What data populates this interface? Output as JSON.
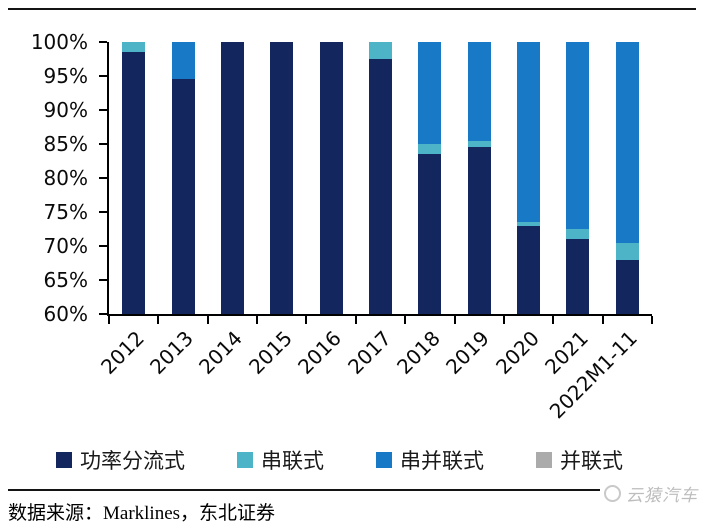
{
  "page": {
    "source_text": "数据来源：Marklines，东北证券",
    "watermark": "云猿汽车"
  },
  "chart_data": {
    "type": "bar",
    "stacked": true,
    "stack_mode": "percent",
    "title": "",
    "xlabel": "",
    "ylabel": "",
    "grid": false,
    "legend_position": "bottom",
    "ylim": [
      60,
      100
    ],
    "ytick_step": 5,
    "ytick_labels": [
      "100%",
      "95%",
      "90%",
      "85%",
      "80%",
      "75%",
      "70%",
      "65%",
      "60%"
    ],
    "categories": [
      "2012",
      "2013",
      "2014",
      "2015",
      "2016",
      "2017",
      "2018",
      "2019",
      "2020",
      "2021",
      "2022M1-11"
    ],
    "series": [
      {
        "name": "功率分流式",
        "color": "#14265E",
        "values": [
          98.5,
          94.5,
          100,
          100,
          100,
          97.5,
          83.5,
          84.5,
          73,
          71,
          68
        ]
      },
      {
        "name": "串联式",
        "color": "#4DB3C6",
        "values": [
          1.5,
          0,
          0,
          0,
          0,
          2.5,
          1.5,
          1,
          0.5,
          1.5,
          2.5
        ]
      },
      {
        "name": "串并联式",
        "color": "#1879C6",
        "values": [
          0,
          5.5,
          0,
          0,
          0,
          0,
          15,
          14.5,
          26.5,
          27.5,
          29.5
        ]
      },
      {
        "name": "并联式",
        "color": "#ABABAB",
        "values": [
          0,
          0,
          0,
          0,
          0,
          0,
          0,
          0,
          0,
          0,
          0
        ]
      }
    ]
  }
}
